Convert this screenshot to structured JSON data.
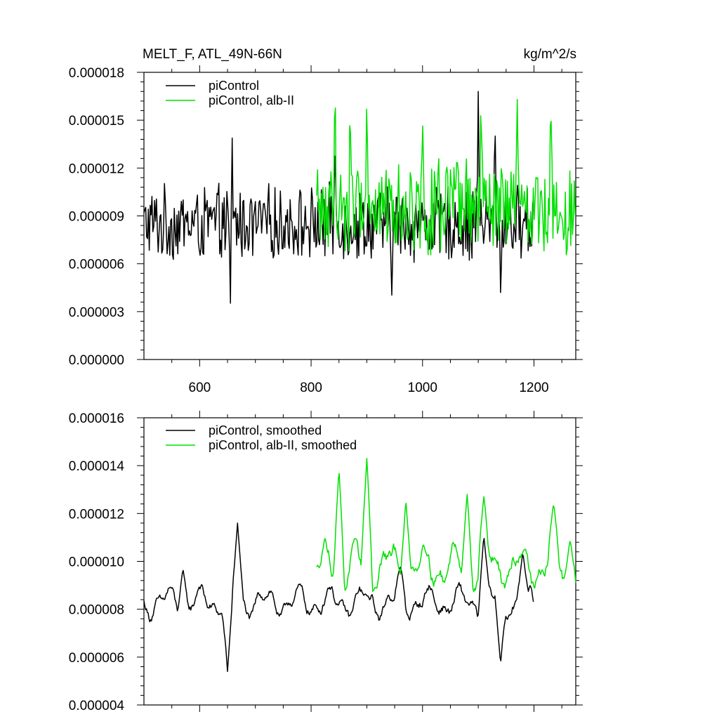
{
  "colors": {
    "piControl": "#000000",
    "albII": "#00e000"
  },
  "chart_data": [
    {
      "type": "line",
      "title": "MELT_F, ATL_49N-66N",
      "units": "kg/m^2/s",
      "xlabel": "",
      "ylabel": "",
      "xlim": [
        500,
        1275
      ],
      "ylim": [
        0,
        1.8e-05
      ],
      "yticks": [
        "0.000000",
        "0.000003",
        "0.000006",
        "0.000009",
        "0.000012",
        "0.000015",
        "0.000018"
      ],
      "xticks": [
        "600",
        "800",
        "1000",
        "1200"
      ],
      "legend_position": "top-left",
      "series": [
        {
          "name": "piControl",
          "color": "#000000",
          "x_start": 500,
          "x_end": 1200,
          "mean": 8.5e-06,
          "amplitude": 2.2e-06,
          "spikes": [
            [
              658,
              1.48e-05
            ],
            [
              655,
              3e-06
            ],
            [
              843,
              1.38e-05
            ],
            [
              945,
              3.8e-06
            ],
            [
              1100,
              1.68e-05
            ],
            [
              1130,
              1.5e-05
            ],
            [
              1140,
              4.2e-06
            ]
          ]
        },
        {
          "name": "piControl, alb-II",
          "color": "#00e000",
          "x_start": 810,
          "x_end": 1275,
          "mean": 9.5e-06,
          "amplitude": 2.8e-06,
          "spikes": [
            [
              843,
              1.78e-05
            ],
            [
              900,
              1.7e-05
            ],
            [
              870,
              1.65e-05
            ],
            [
              1105,
              1.72e-05
            ],
            [
              1230,
              1.7e-05
            ],
            [
              1170,
              1.63e-05
            ],
            [
              1000,
              1.58e-05
            ]
          ]
        }
      ]
    },
    {
      "type": "line",
      "title": "",
      "xlabel": "",
      "ylabel": "",
      "xlim": [
        500,
        1275
      ],
      "ylim": [
        4e-06,
        1.6e-05
      ],
      "yticks": [
        "0.000004",
        "0.000006",
        "0.000008",
        "0.000010",
        "0.000012",
        "0.000014",
        "0.000016"
      ],
      "xticks": [],
      "legend_position": "top-left",
      "series": [
        {
          "name": "piControl, smoothed",
          "color": "#000000",
          "x_start": 500,
          "x_end": 1200,
          "mean": 8.3e-06,
          "amplitude": 8e-07,
          "spikes": [
            [
              570,
              9.7e-06
            ],
            [
              650,
              5.4e-06
            ],
            [
              668,
              1.16e-05
            ],
            [
              960,
              9.8e-06
            ],
            [
              1110,
              1.11e-05
            ],
            [
              1140,
              5.7e-06
            ],
            [
              1180,
              1.04e-05
            ]
          ]
        },
        {
          "name": "piControl, alb-II, smoothed",
          "color": "#00e000",
          "x_start": 810,
          "x_end": 1275,
          "mean": 9.8e-06,
          "amplitude": 1.2e-06,
          "spikes": [
            [
              850,
              1.39e-05
            ],
            [
              900,
              1.43e-05
            ],
            [
              970,
              1.26e-05
            ],
            [
              1080,
              1.28e-05
            ],
            [
              1110,
              1.27e-05
            ],
            [
              1235,
              1.24e-05
            ],
            [
              1265,
              1.09e-05
            ]
          ]
        }
      ]
    }
  ]
}
